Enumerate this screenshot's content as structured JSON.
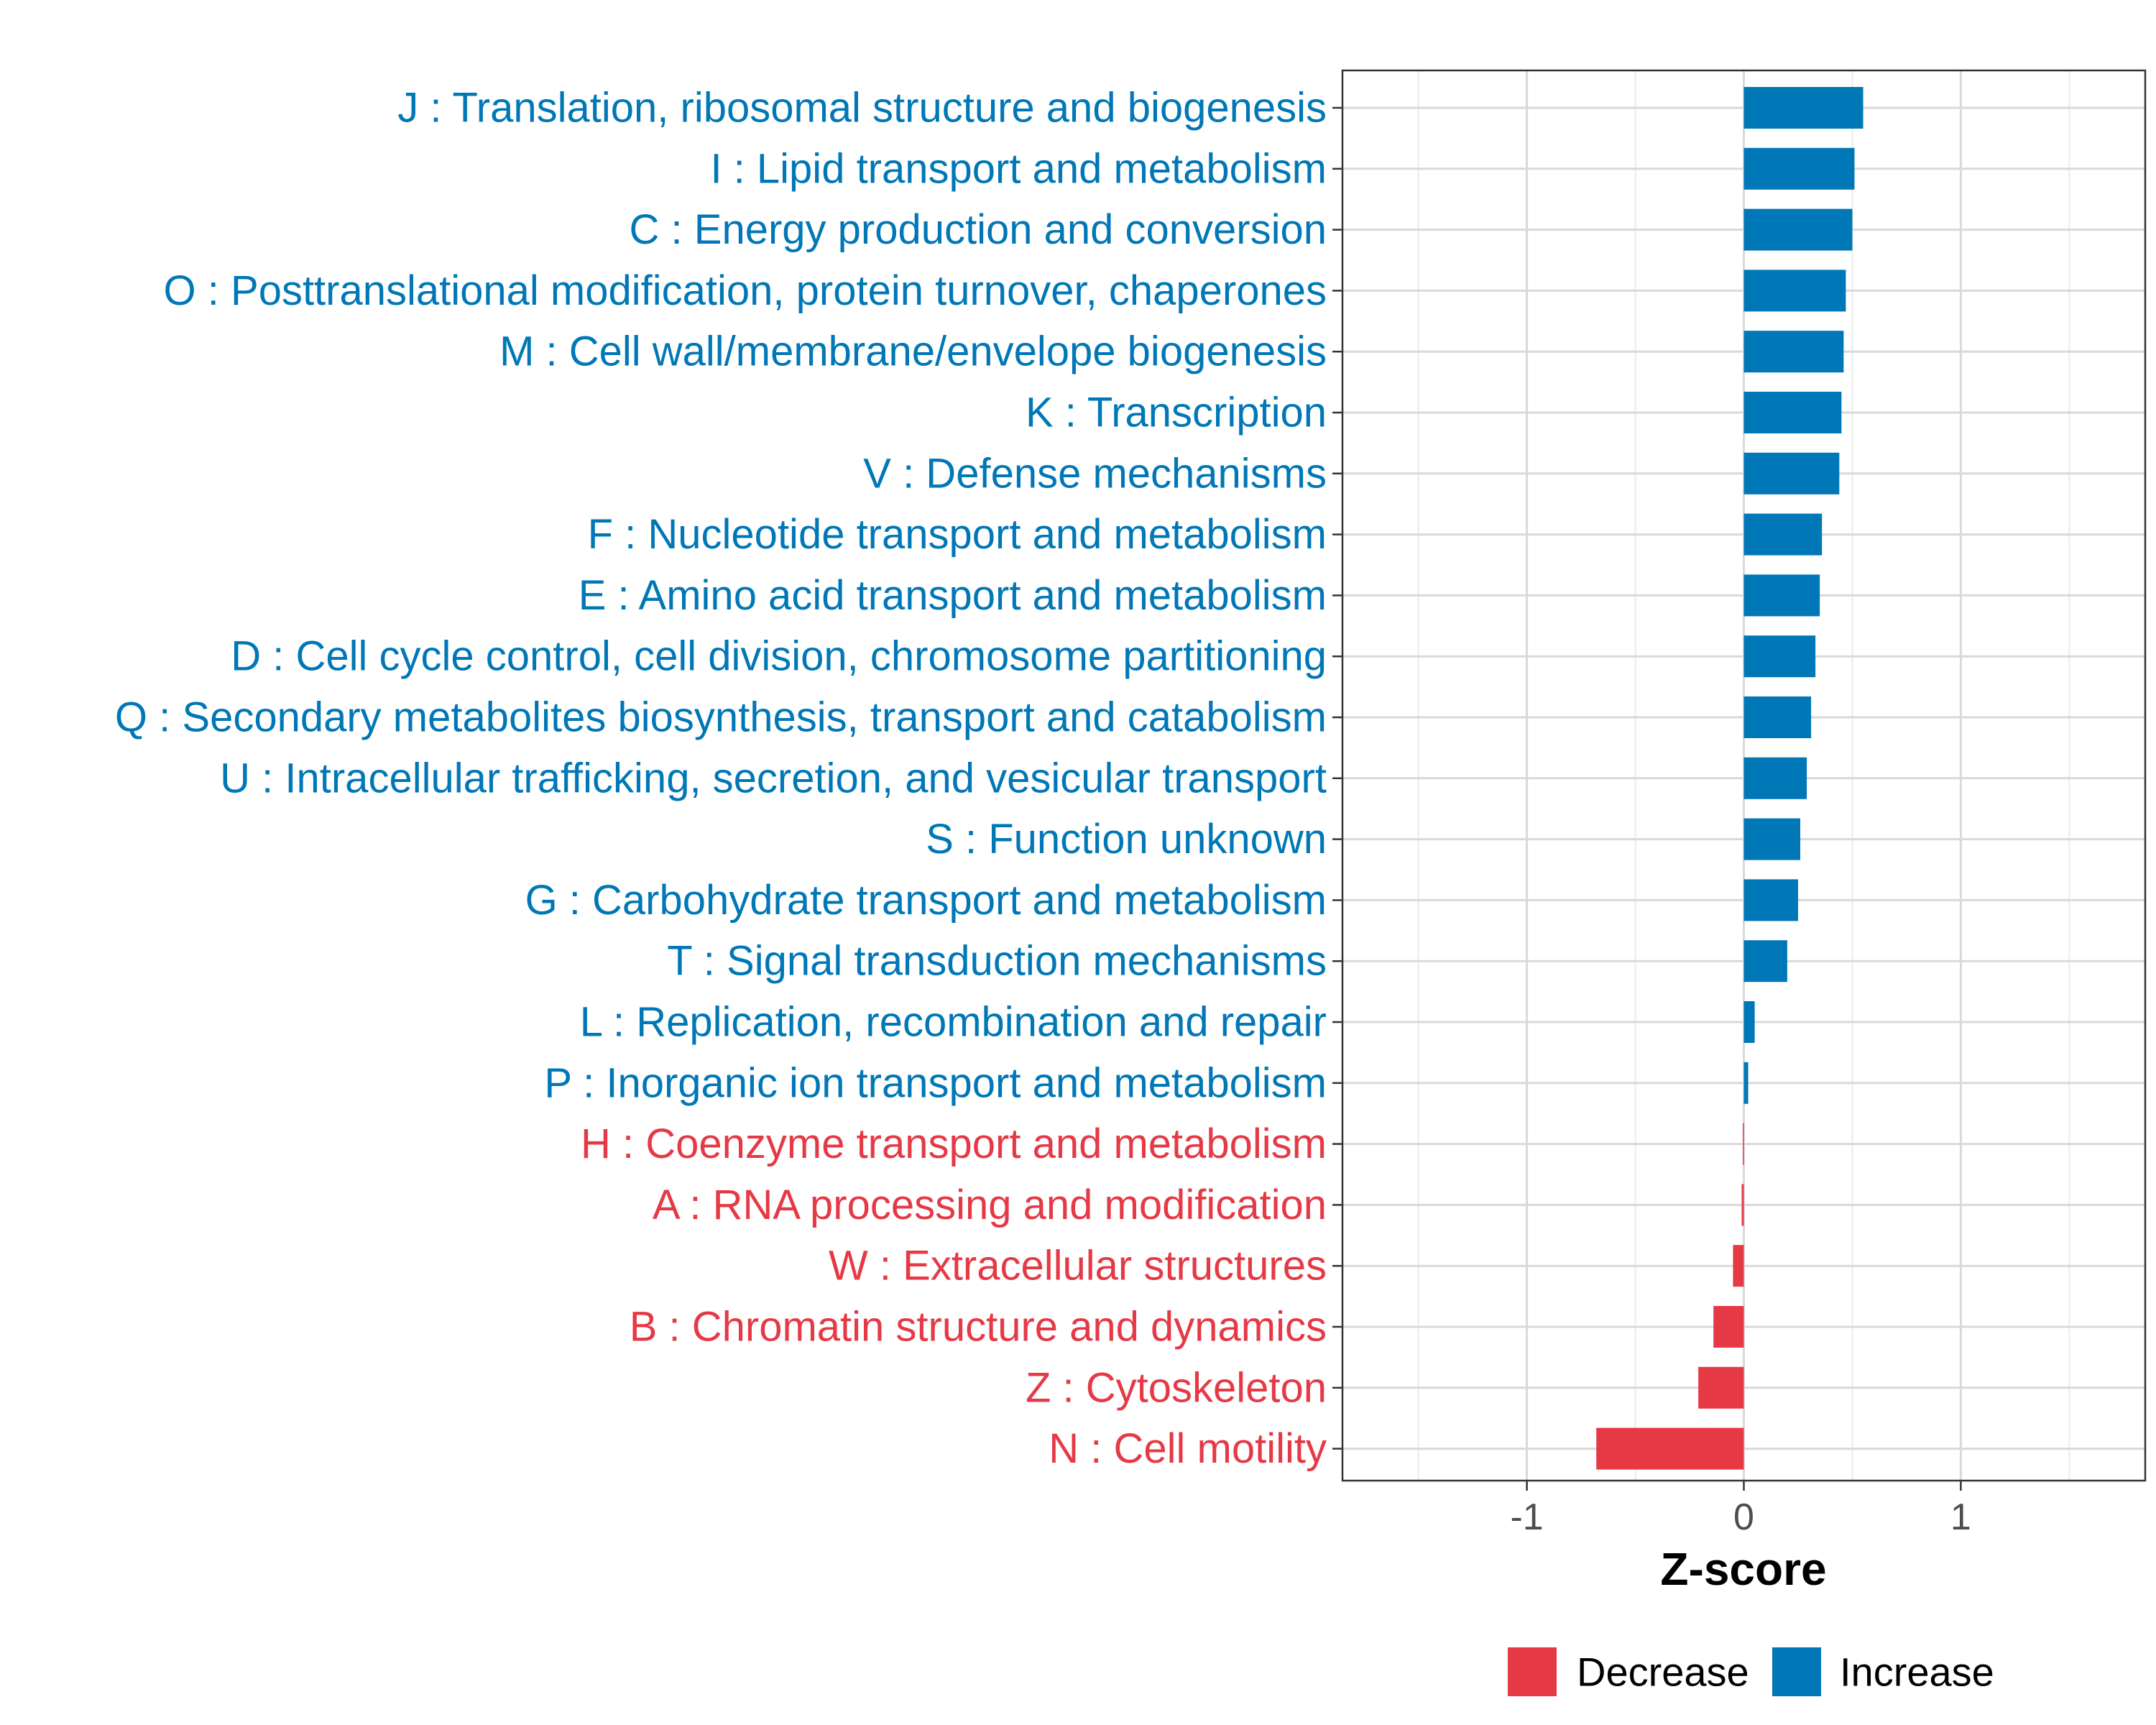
{
  "chart_data": {
    "type": "bar",
    "orientation": "horizontal",
    "title": "",
    "xlabel": "Z-score",
    "ylabel": "",
    "xlim": [
      -1.85,
      1.85
    ],
    "xticks": [
      -1,
      0,
      1
    ],
    "xtick_labels": [
      "-1",
      "0",
      "1"
    ],
    "grid": true,
    "legend_position": "bottom",
    "categories": [
      "J : Translation, ribosomal structure and biogenesis",
      "I : Lipid transport and metabolism",
      "C : Energy production and conversion",
      "O : Posttranslational modification, protein turnover, chaperones",
      "M : Cell wall/membrane/envelope biogenesis",
      "K : Transcription",
      "V : Defense mechanisms",
      "F : Nucleotide transport and metabolism",
      "E : Amino acid transport and metabolism",
      "D : Cell cycle control, cell division, chromosome partitioning",
      "Q : Secondary metabolites biosynthesis, transport and catabolism",
      "U : Intracellular trafficking, secretion, and vesicular transport",
      "S : Function unknown",
      "G : Carbohydrate transport and metabolism",
      "T : Signal transduction mechanisms",
      "L : Replication, recombination and repair",
      "P : Inorganic ion transport and metabolism",
      "H : Coenzyme transport and metabolism",
      "A : RNA processing and modification",
      "W : Extracellular structures",
      "B : Chromatin structure and dynamics",
      "Z : Cytoskeleton",
      "N : Cell motility"
    ],
    "values": [
      0.55,
      0.51,
      0.5,
      0.47,
      0.46,
      0.45,
      0.44,
      0.36,
      0.35,
      0.33,
      0.31,
      0.29,
      0.26,
      0.25,
      0.2,
      0.05,
      0.02,
      -0.005,
      -0.01,
      -0.05,
      -0.14,
      -0.21,
      -0.68
    ],
    "groups": [
      "Increase",
      "Increase",
      "Increase",
      "Increase",
      "Increase",
      "Increase",
      "Increase",
      "Increase",
      "Increase",
      "Increase",
      "Increase",
      "Increase",
      "Increase",
      "Increase",
      "Increase",
      "Increase",
      "Increase",
      "Decrease",
      "Decrease",
      "Decrease",
      "Decrease",
      "Decrease",
      "Decrease"
    ],
    "legend": [
      {
        "name": "Decrease",
        "color": "#E63946"
      },
      {
        "name": "Increase",
        "color": "#0077B6"
      }
    ]
  }
}
